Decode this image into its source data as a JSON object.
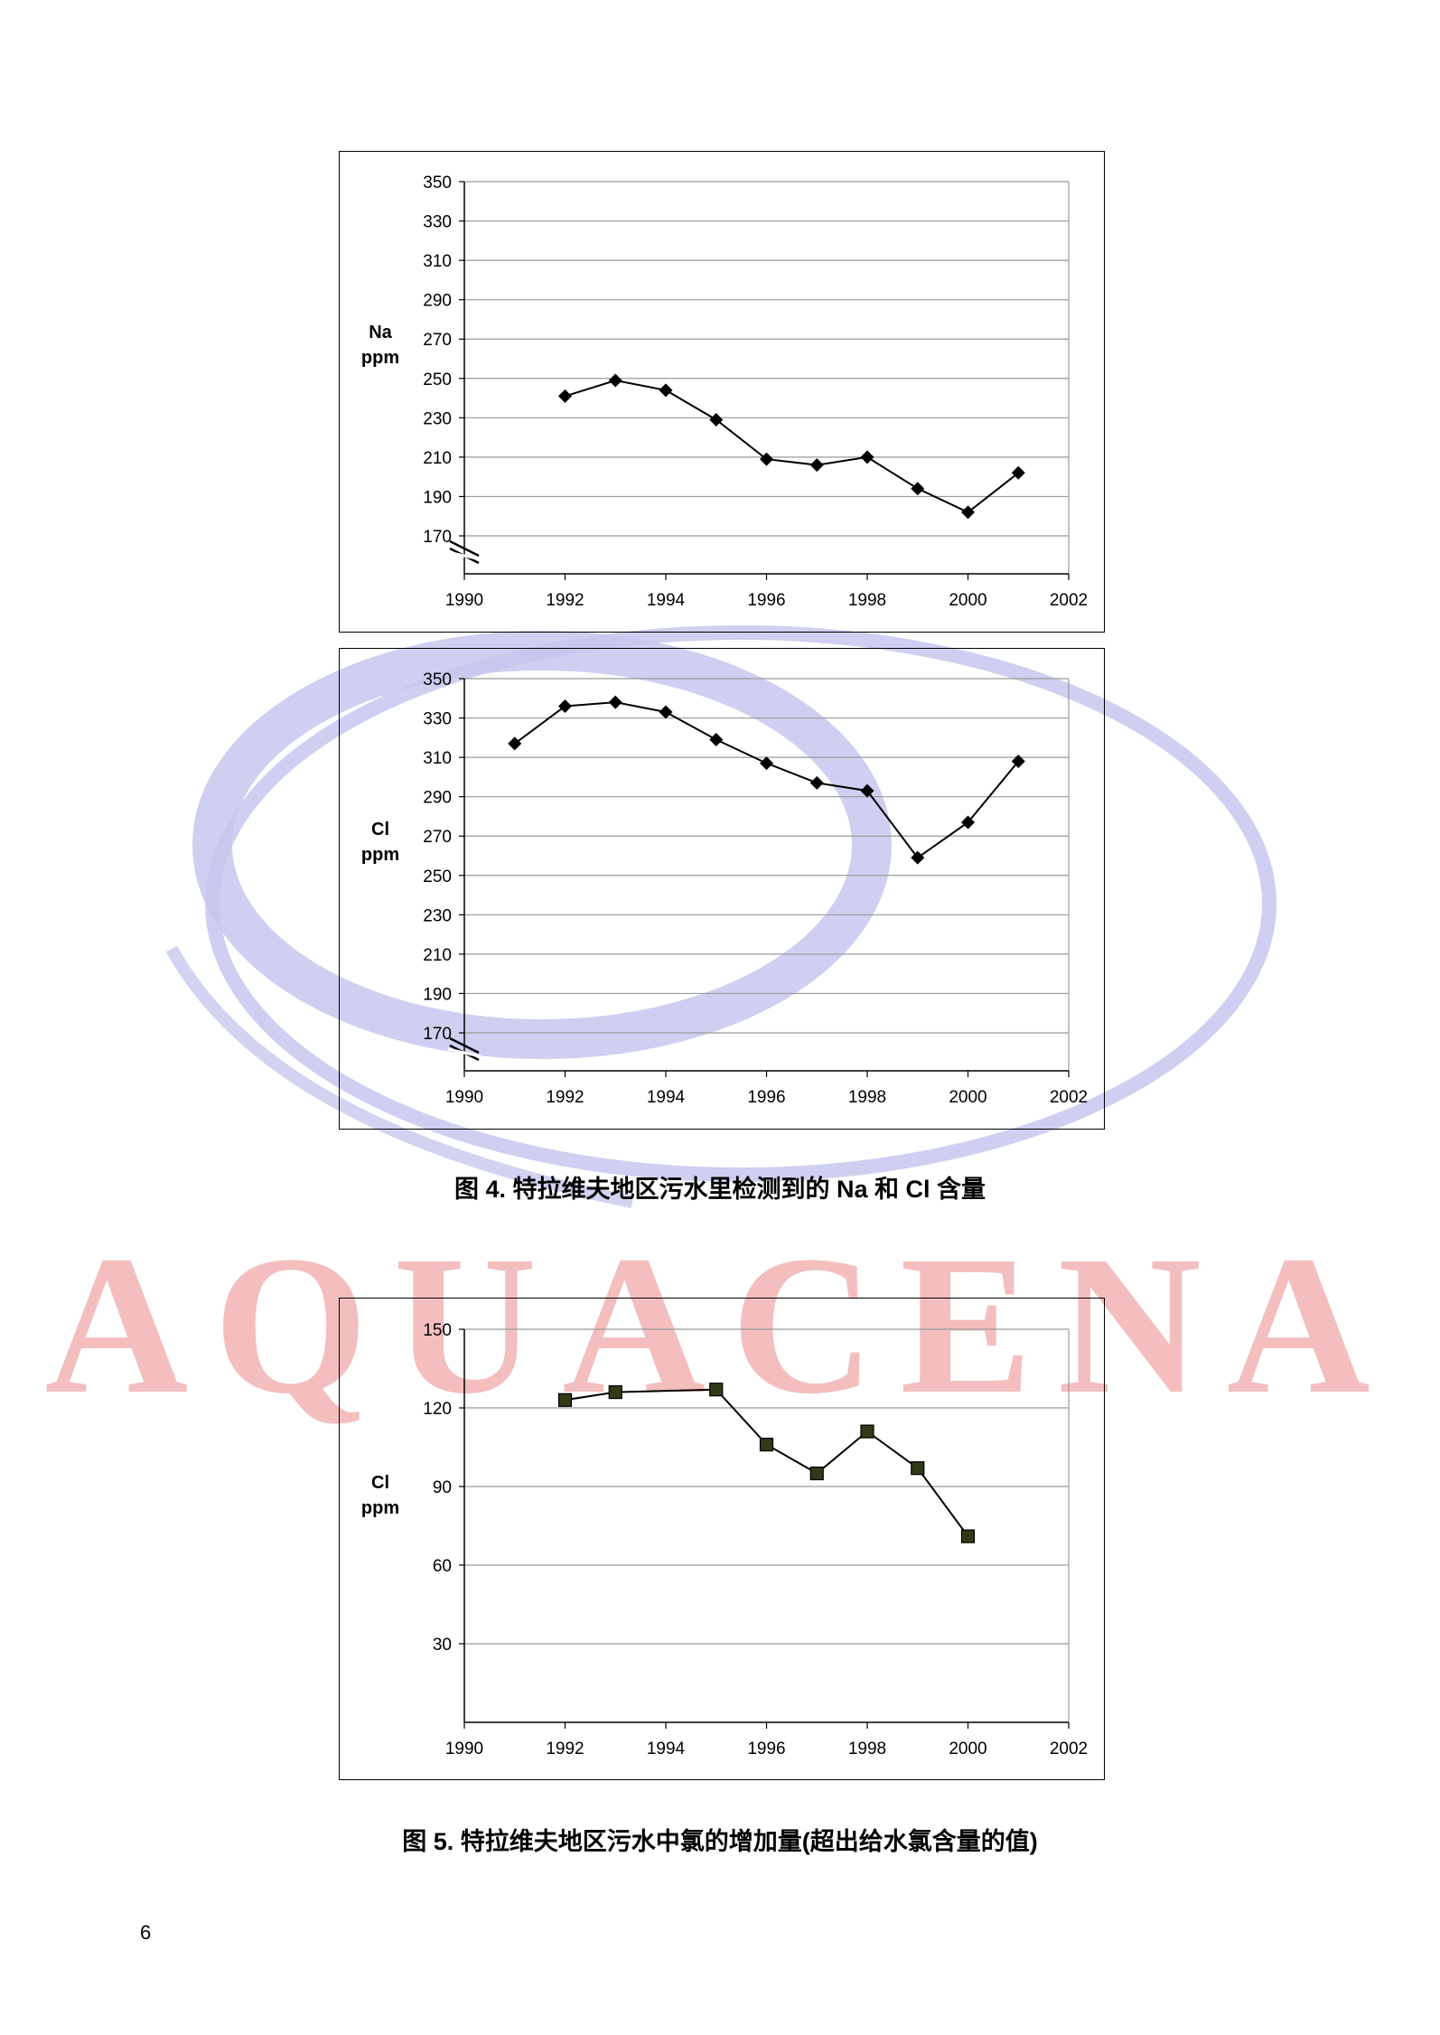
{
  "watermark": {
    "text": "AQUACENA",
    "ring_color": "#c7c7ee",
    "text_color": "#f3b3b3"
  },
  "charts": [
    {
      "id": "na-chart",
      "ylabel_line1": "Na",
      "ylabel_line2": "ppm"
    },
    {
      "id": "cl-chart",
      "ylabel_line1": "Cl",
      "ylabel_line2": "ppm"
    },
    {
      "id": "cl-increase-chart",
      "ylabel_line1": "Cl",
      "ylabel_line2": "ppm"
    }
  ],
  "captions": {
    "figure4": "图 4. 特拉维夫地区污水里检测到的 Na 和 Cl 含量",
    "figure5": "图 5. 特拉维夫地区污水中氯的增加量(超出给水氯含量的值)"
  },
  "page_number": "6",
  "chart_data": [
    {
      "type": "line",
      "marker": "diamond",
      "title": "",
      "xlabel": "",
      "ylabel": "Na ppm",
      "xlim": [
        1990,
        2002
      ],
      "ylim": [
        170,
        350
      ],
      "axis_break": true,
      "grid": true,
      "x_ticks": [
        "1990",
        "1992",
        "1994",
        "1996",
        "1998",
        "2000",
        "2002"
      ],
      "y_ticks": [
        "350",
        "330",
        "310",
        "290",
        "270",
        "250",
        "230",
        "210",
        "190",
        "170"
      ],
      "series": [
        {
          "x": [
            1992,
            1993,
            1994,
            1995,
            1996,
            1997,
            1998,
            1999,
            2000,
            2001
          ],
          "values": [
            241,
            249,
            244,
            229,
            209,
            206,
            210,
            194,
            182,
            202
          ]
        }
      ]
    },
    {
      "type": "line",
      "marker": "diamond",
      "title": "",
      "xlabel": "",
      "ylabel": "Cl ppm",
      "xlim": [
        1990,
        2002
      ],
      "ylim": [
        170,
        350
      ],
      "axis_break": true,
      "grid": true,
      "x_ticks": [
        "1990",
        "1992",
        "1994",
        "1996",
        "1998",
        "2000",
        "2002"
      ],
      "y_ticks": [
        "350",
        "330",
        "310",
        "290",
        "270",
        "250",
        "230",
        "210",
        "190",
        "170"
      ],
      "series": [
        {
          "x": [
            1991,
            1992,
            1993,
            1994,
            1995,
            1996,
            1997,
            1998,
            1999,
            2000,
            2001
          ],
          "values": [
            317,
            336,
            338,
            333,
            319,
            307,
            297,
            293,
            259,
            277,
            308
          ]
        }
      ]
    },
    {
      "type": "line",
      "marker": "square",
      "title": "",
      "xlabel": "",
      "ylabel": "Cl ppm",
      "xlim": [
        1990,
        2002
      ],
      "ylim": [
        0,
        150
      ],
      "axis_break": false,
      "grid": true,
      "x_ticks": [
        "1990",
        "1992",
        "1994",
        "1996",
        "1998",
        "2000",
        "2002"
      ],
      "y_ticks": [
        "150",
        "120",
        "90",
        "60",
        "30"
      ],
      "series": [
        {
          "x": [
            1992,
            1993,
            1995,
            1996,
            1997,
            1998,
            1999,
            2000
          ],
          "values": [
            123,
            126,
            127,
            106,
            95,
            111,
            97,
            71
          ]
        }
      ]
    }
  ]
}
